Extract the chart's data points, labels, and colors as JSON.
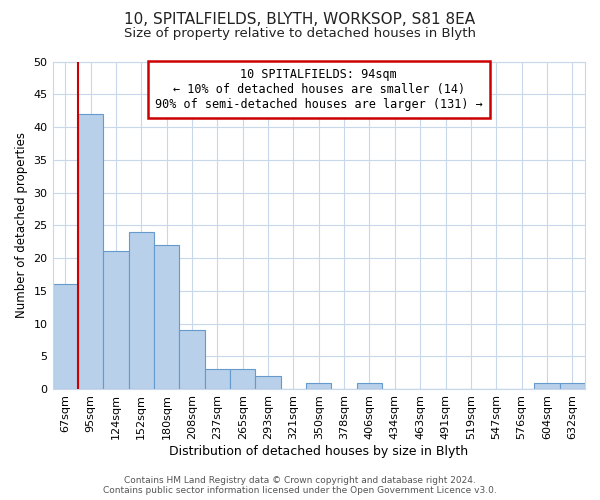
{
  "title": "10, SPITALFIELDS, BLYTH, WORKSOP, S81 8EA",
  "subtitle": "Size of property relative to detached houses in Blyth",
  "xlabel": "Distribution of detached houses by size in Blyth",
  "ylabel": "Number of detached properties",
  "bar_labels": [
    "67sqm",
    "95sqm",
    "124sqm",
    "152sqm",
    "180sqm",
    "208sqm",
    "237sqm",
    "265sqm",
    "293sqm",
    "321sqm",
    "350sqm",
    "378sqm",
    "406sqm",
    "434sqm",
    "463sqm",
    "491sqm",
    "519sqm",
    "547sqm",
    "576sqm",
    "604sqm",
    "632sqm"
  ],
  "bar_values": [
    16,
    42,
    21,
    24,
    22,
    9,
    3,
    3,
    2,
    0,
    1,
    0,
    1,
    0,
    0,
    0,
    0,
    0,
    0,
    1,
    1
  ],
  "bar_color": "#b8d0ea",
  "bar_edge_color": "#6699cc",
  "vline_color": "#cc0000",
  "ylim": [
    0,
    50
  ],
  "yticks": [
    0,
    5,
    10,
    15,
    20,
    25,
    30,
    35,
    40,
    45,
    50
  ],
  "annotation_title": "10 SPITALFIELDS: 94sqm",
  "annotation_line1": "← 10% of detached houses are smaller (14)",
  "annotation_line2": "90% of semi-detached houses are larger (131) →",
  "annotation_box_color": "#ffffff",
  "annotation_box_edge": "#cc0000",
  "footer1": "Contains HM Land Registry data © Crown copyright and database right 2024.",
  "footer2": "Contains public sector information licensed under the Open Government Licence v3.0.",
  "bg_color": "#ffffff",
  "grid_color": "#c8d8ea",
  "title_fontsize": 11,
  "subtitle_fontsize": 9.5
}
